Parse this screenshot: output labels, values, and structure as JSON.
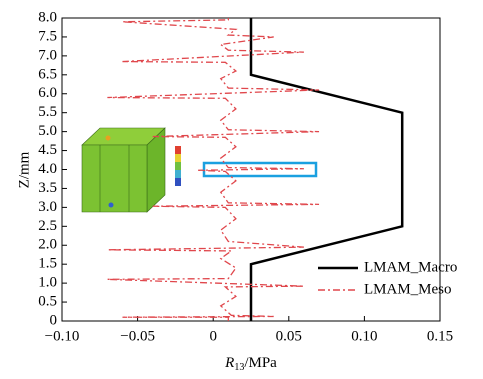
{
  "chart_data": {
    "type": "line",
    "xlabel": {
      "symbol": "R",
      "subscript": "13",
      "unit": "/MPa"
    },
    "ylabel": "Z/mm",
    "xlim": [
      -0.1,
      0.15
    ],
    "xticks": [
      {
        "value": -0.1,
        "label": "−0.10"
      },
      {
        "value": -0.05,
        "label": "−0.05"
      },
      0,
      0.05,
      {
        "value": 0.1,
        "label": "0.10"
      },
      0.15
    ],
    "ylim": [
      0,
      8
    ],
    "yticks": [
      0,
      0.5,
      {
        "value": 1,
        "label": "1.0"
      },
      1.5,
      {
        "value": 2,
        "label": "2.0"
      },
      2.5,
      {
        "value": 3,
        "label": "3.0"
      },
      3.5,
      {
        "value": 4,
        "label": "4.0"
      },
      4.5,
      {
        "value": 5,
        "label": "5.0"
      },
      5.5,
      {
        "value": 6,
        "label": "6.0"
      },
      6.5,
      {
        "value": 7,
        "label": "7.0"
      },
      7.5,
      {
        "value": 8,
        "label": "8.0"
      }
    ],
    "legend": "lower right",
    "series": [
      {
        "name": "LMAM_Macro",
        "color": "#000000",
        "style": "solid",
        "x": [
          0.025,
          0.025,
          0.125,
          0.125,
          0.025,
          0.025
        ],
        "values": [
          0,
          1.5,
          2.5,
          5.5,
          6.5,
          8
        ]
      },
      {
        "name": "LMAM_Meso",
        "color": "#e0474c",
        "style": "dashdot",
        "x": [
          0.01,
          0.01,
          -0.06,
          0.04,
          0.012,
          0.005,
          0.015,
          0.008,
          0.06,
          -0.07,
          0.01,
          0.015,
          0.005,
          0.012,
          -0.07,
          0.06,
          0.01,
          0.005,
          0.015,
          0.008,
          -0.04,
          0.07,
          0.01,
          0.005,
          0.015,
          0.008,
          -0.01,
          0.06,
          0.01,
          0.005,
          0.015,
          0.008,
          -0.04,
          0.07,
          0.01,
          0.005,
          0.015,
          0.008,
          -0.07,
          0.07,
          0.01,
          0.005,
          0.015,
          0.008,
          -0.06,
          0.06,
          0.01,
          0.005,
          0.04,
          0.01,
          0.015,
          -0.06,
          0.01,
          0.01
        ],
        "values": [
          0,
          0.1,
          0.1,
          0.12,
          0.15,
          0.4,
          0.65,
          0.9,
          0.92,
          1.1,
          1.12,
          1.4,
          1.65,
          1.85,
          1.88,
          1.95,
          2.1,
          2.4,
          2.7,
          3.0,
          3.03,
          3.08,
          3.12,
          3.4,
          3.7,
          3.95,
          3.98,
          4.02,
          4.05,
          4.3,
          4.6,
          4.85,
          4.87,
          5.0,
          5.05,
          5.3,
          5.6,
          5.88,
          5.9,
          6.1,
          6.15,
          6.4,
          6.6,
          6.83,
          6.85,
          7.1,
          7.15,
          7.3,
          7.5,
          7.55,
          7.7,
          7.9,
          7.95,
          8.0
        ]
      }
    ]
  }
}
